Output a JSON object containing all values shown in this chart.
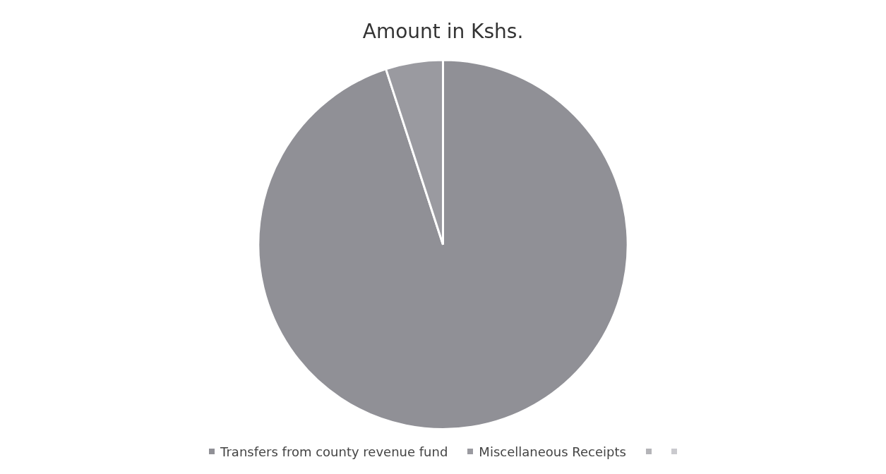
{
  "chart_data": {
    "type": "pie",
    "title": "Amount in Kshs.",
    "categories": [
      "Transfers from county revenue fund",
      "Miscellaneous Receipts",
      null,
      null
    ],
    "values": [
      95,
      5,
      0,
      0
    ],
    "colors": [
      "#909096",
      "#9a9aa0",
      "#b4b4b8",
      "#cacace"
    ],
    "legend": "bottom"
  }
}
